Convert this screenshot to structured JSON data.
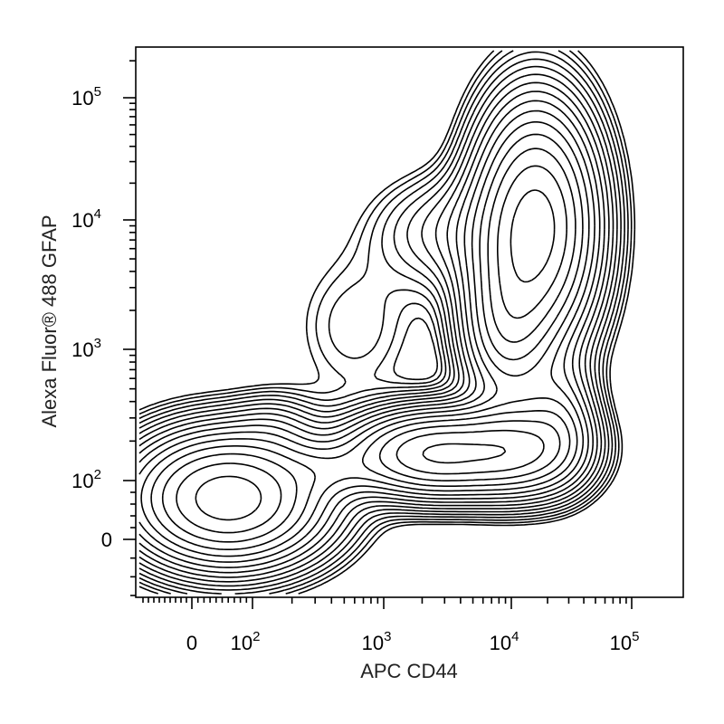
{
  "chart_data": {
    "type": "contour",
    "xlabel": "APC CD44",
    "ylabel": "Alexa Fluor® 488 GFAP",
    "xscale": "biexponential (log with linear region near 0)",
    "yscale": "biexponential (log with linear region near 0)",
    "xlim": [
      -100,
      200000
    ],
    "ylim": [
      -60,
      250000
    ],
    "xticks": [
      {
        "value": 0,
        "base": "0",
        "exp": ""
      },
      {
        "value": 100,
        "base": "10",
        "exp": "2"
      },
      {
        "value": 1000,
        "base": "10",
        "exp": "3"
      },
      {
        "value": 10000,
        "base": "10",
        "exp": "4"
      },
      {
        "value": 100000,
        "base": "10",
        "exp": "5"
      }
    ],
    "yticks": [
      {
        "value": 0,
        "base": "0",
        "exp": ""
      },
      {
        "value": 100,
        "base": "10",
        "exp": "2"
      },
      {
        "value": 1000,
        "base": "10",
        "exp": "3"
      },
      {
        "value": 10000,
        "base": "10",
        "exp": "4"
      },
      {
        "value": 100000,
        "base": "10",
        "exp": "5"
      }
    ],
    "populations": [
      {
        "center": [
          60,
          70
        ],
        "spread": [
          0.45,
          0.3
        ],
        "peak": 1.0
      },
      {
        "center": [
          2500,
          160
        ],
        "spread": [
          0.4,
          0.2
        ],
        "peak": 0.85
      },
      {
        "center": [
          12000,
          170
        ],
        "spread": [
          0.3,
          0.22
        ],
        "peak": 0.55
      },
      {
        "center": [
          16000,
          9000
        ],
        "spread": [
          0.28,
          0.55
        ],
        "peak": 0.95
      }
    ],
    "contour_levels": 16,
    "grid": false,
    "legend": "none"
  }
}
